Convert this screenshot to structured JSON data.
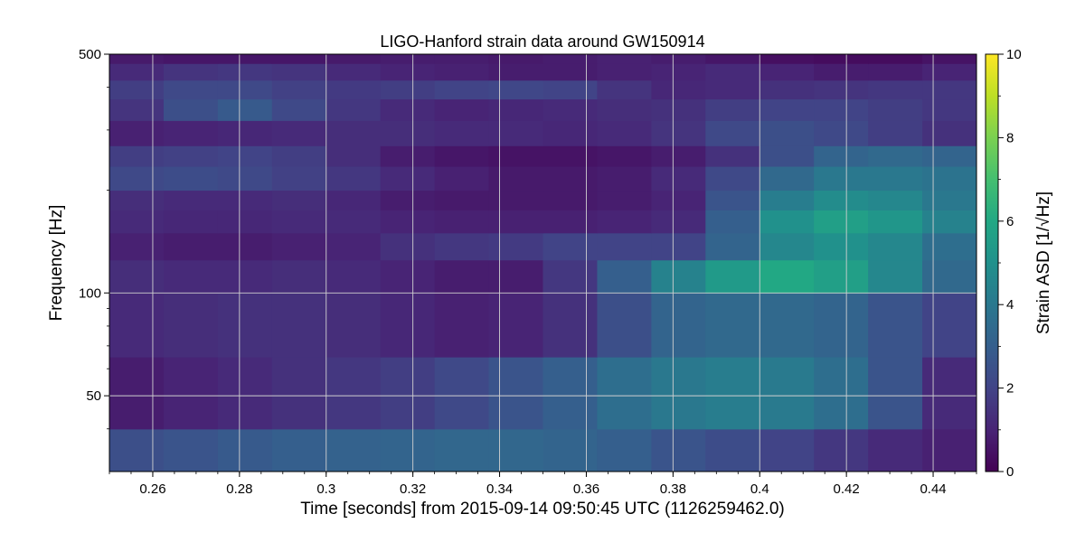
{
  "chart_data": {
    "type": "heatmap",
    "title": "LIGO-Hanford strain data around GW150914",
    "xlabel": "Time [seconds] from 2015-09-14 09:50:45 UTC (1126259462.0)",
    "ylabel": "Frequency [Hz]",
    "colorbar_label": "Strain ASD [1/√Hz]",
    "colormap": "viridis",
    "xlim": [
      0.25,
      0.45
    ],
    "ylim": [
      30,
      500
    ],
    "yscale": "log",
    "clim": [
      0,
      10
    ],
    "grid": true,
    "x_ticks": [
      {
        "value": 0.26,
        "label": "0.26"
      },
      {
        "value": 0.28,
        "label": "0.28"
      },
      {
        "value": 0.3,
        "label": "0.3"
      },
      {
        "value": 0.32,
        "label": "0.32"
      },
      {
        "value": 0.34,
        "label": "0.34"
      },
      {
        "value": 0.36,
        "label": "0.36"
      },
      {
        "value": 0.38,
        "label": "0.38"
      },
      {
        "value": 0.4,
        "label": "0.4"
      },
      {
        "value": 0.42,
        "label": "0.42"
      },
      {
        "value": 0.44,
        "label": "0.44"
      }
    ],
    "y_ticks": [
      {
        "value": 50,
        "label": "50"
      },
      {
        "value": 100,
        "label": "100"
      },
      {
        "value": 500,
        "label": "500"
      }
    ],
    "colorbar_ticks": [
      {
        "value": 0,
        "label": "0"
      },
      {
        "value": 2,
        "label": "2"
      },
      {
        "value": 4,
        "label": "4"
      },
      {
        "value": 6,
        "label": "6"
      },
      {
        "value": 8,
        "label": "8"
      },
      {
        "value": 10,
        "label": "10"
      }
    ],
    "time_bins": [
      0.25,
      0.2625,
      0.275,
      0.2875,
      0.3,
      0.3125,
      0.325,
      0.3375,
      0.35,
      0.3625,
      0.375,
      0.3875,
      0.4,
      0.4125,
      0.425,
      0.4375,
      0.45
    ],
    "freq_bands": [
      30,
      40,
      65,
      100,
      125,
      150,
      175,
      200,
      235,
      270,
      320,
      370,
      420,
      470,
      500
    ],
    "values": [
      [
        2.4,
        2.6,
        2.8,
        3.0,
        3.1,
        3.2,
        3.3,
        3.3,
        3.2,
        3.0,
        2.6,
        2.3,
        2.0,
        1.6,
        1.2,
        0.9
      ],
      [
        0.8,
        1.0,
        1.2,
        1.4,
        1.6,
        1.8,
        2.2,
        2.6,
        3.0,
        3.6,
        4.0,
        4.2,
        4.1,
        3.6,
        2.6,
        1.2
      ],
      [
        1.2,
        1.3,
        1.4,
        1.4,
        1.3,
        1.1,
        0.9,
        1.0,
        1.4,
        2.4,
        3.2,
        3.4,
        3.4,
        3.2,
        2.6,
        2.0
      ],
      [
        1.3,
        1.2,
        1.2,
        1.3,
        1.2,
        1.0,
        0.8,
        0.8,
        1.6,
        3.0,
        4.4,
        5.4,
        6.0,
        5.6,
        4.6,
        3.4
      ],
      [
        0.9,
        0.8,
        0.8,
        0.9,
        1.0,
        1.4,
        1.6,
        1.7,
        2.0,
        2.0,
        2.0,
        3.2,
        4.6,
        5.0,
        4.6,
        3.6
      ],
      [
        1.2,
        1.1,
        1.1,
        1.2,
        1.2,
        1.0,
        0.9,
        0.9,
        0.9,
        1.0,
        1.2,
        3.0,
        5.0,
        5.6,
        5.2,
        4.4
      ],
      [
        1.3,
        1.2,
        1.2,
        1.3,
        1.1,
        0.8,
        0.7,
        0.7,
        0.7,
        0.8,
        1.0,
        2.6,
        4.2,
        4.8,
        4.6,
        4.0
      ],
      [
        2.2,
        2.3,
        2.2,
        1.9,
        1.6,
        1.2,
        0.9,
        0.7,
        0.7,
        0.8,
        1.2,
        2.2,
        3.4,
        4.0,
        4.0,
        3.8
      ],
      [
        1.8,
        1.9,
        2.0,
        1.8,
        1.3,
        0.8,
        0.6,
        0.5,
        0.5,
        0.6,
        0.8,
        1.4,
        2.4,
        3.2,
        3.4,
        3.2
      ],
      [
        0.9,
        1.0,
        1.1,
        1.2,
        1.3,
        1.3,
        1.2,
        1.2,
        1.1,
        1.2,
        1.5,
        2.2,
        2.4,
        2.2,
        1.8,
        1.4
      ],
      [
        1.5,
        2.4,
        2.8,
        2.2,
        1.6,
        1.2,
        1.0,
        1.1,
        1.2,
        1.3,
        1.4,
        1.8,
        2.0,
        2.0,
        1.8,
        1.6
      ],
      [
        1.8,
        2.2,
        2.2,
        1.9,
        1.7,
        1.8,
        2.0,
        2.1,
        2.0,
        1.5,
        1.1,
        1.2,
        1.4,
        1.5,
        1.6,
        1.6
      ],
      [
        1.2,
        1.5,
        1.6,
        1.5,
        1.2,
        1.0,
        0.9,
        0.8,
        0.8,
        0.9,
        1.0,
        1.2,
        1.0,
        0.8,
        0.8,
        1.0
      ],
      [
        0.7,
        0.6,
        0.6,
        0.6,
        0.7,
        0.8,
        0.8,
        0.7,
        0.8,
        0.9,
        0.8,
        0.6,
        0.4,
        0.3,
        0.3,
        0.5
      ]
    ]
  }
}
